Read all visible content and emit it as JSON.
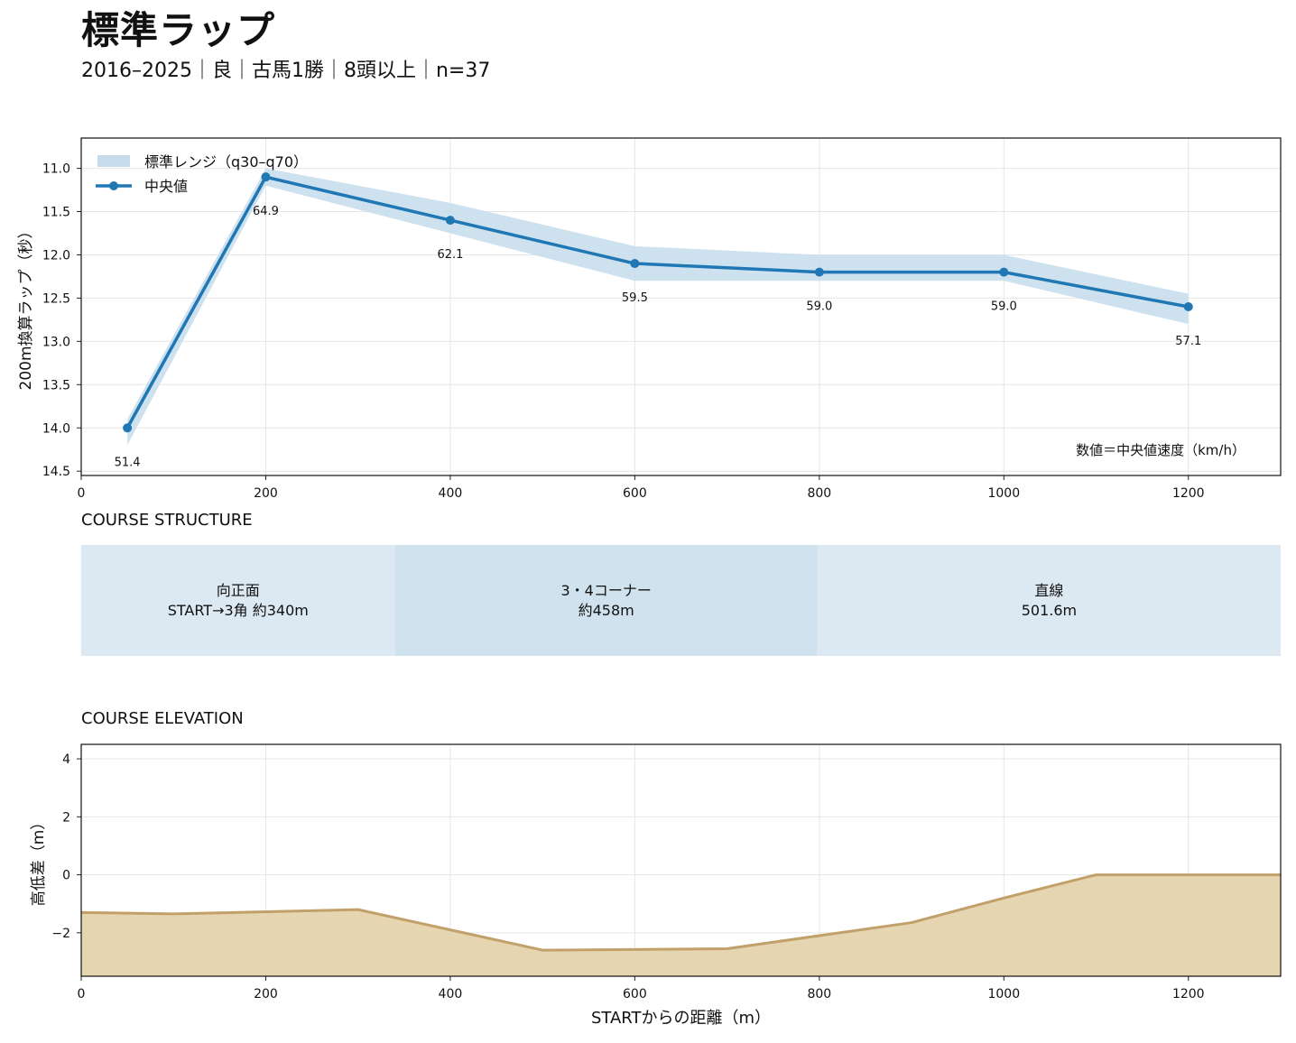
{
  "header": {
    "title": "標準ラップ",
    "subtitle": "2016–2025｜良｜古馬1勝｜8頭以上｜n=37"
  },
  "colors": {
    "line": "#1f77b4",
    "band": "#c6dcec",
    "segment_light": "#dce9f3",
    "segment_mid": "#cfe2ee",
    "elevation_fill": "#e6d5b1",
    "elevation_line": "#c2a06a"
  },
  "chart_data": [
    {
      "type": "line",
      "legend_placement": "top-left",
      "legend": {
        "band": "標準レンジ（q30–q70）",
        "median": "中央値"
      },
      "ylabel": "200m換算ラップ（秒）",
      "xlabel": "",
      "xlim": [
        0,
        1300
      ],
      "ylim": [
        14.55,
        10.65
      ],
      "y_inverted": true,
      "xticks": [
        0,
        200,
        400,
        600,
        800,
        1000,
        1200
      ],
      "yticks": [
        11.0,
        11.5,
        12.0,
        12.5,
        13.0,
        13.5,
        14.0,
        14.5
      ],
      "grid": true,
      "x": [
        50,
        200,
        400,
        600,
        800,
        1000,
        1200
      ],
      "median": [
        14.0,
        11.1,
        11.6,
        12.1,
        12.2,
        12.2,
        12.6
      ],
      "band_low": [
        13.9,
        11.0,
        11.4,
        11.9,
        12.0,
        12.0,
        12.45
      ],
      "band_high": [
        14.2,
        11.2,
        11.75,
        12.3,
        12.3,
        12.3,
        12.8
      ],
      "data_labels": [
        "51.4",
        "64.9",
        "62.1",
        "59.5",
        "59.0",
        "59.0",
        "57.1"
      ],
      "annotation": "数値＝中央値速度（km/h）"
    },
    {
      "type": "area",
      "title": "COURSE ELEVATION",
      "xlabel": "STARTからの距離（m）",
      "ylabel": "高低差（m）",
      "xlim": [
        0,
        1300
      ],
      "ylim": [
        -3.5,
        4.5
      ],
      "xticks": [
        0,
        200,
        400,
        600,
        800,
        1000,
        1200
      ],
      "yticks": [
        4,
        2,
        0,
        -2
      ],
      "ytick_labels": [
        "4",
        "2",
        "0",
        "−2"
      ],
      "grid": true,
      "x": [
        0,
        100,
        300,
        500,
        700,
        900,
        1000,
        1100,
        1300
      ],
      "y": [
        -1.3,
        -1.35,
        -1.2,
        -2.6,
        -2.55,
        -1.65,
        -0.8,
        0.0,
        0.0
      ]
    }
  ],
  "course_structure": {
    "title": "COURSE STRUCTURE",
    "segments": [
      {
        "start": 0,
        "end": 340,
        "line1": "向正面",
        "line2": "START→3角 約340m"
      },
      {
        "start": 340,
        "end": 798,
        "line1": "3・4コーナー",
        "line2": "約458m"
      },
      {
        "start": 798,
        "end": 1300,
        "line1": "直線",
        "line2": "501.6m"
      }
    ]
  }
}
